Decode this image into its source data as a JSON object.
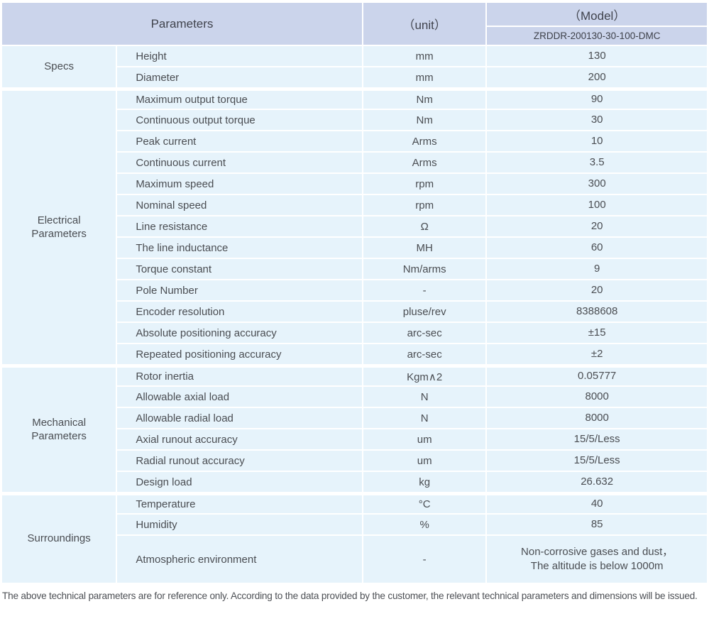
{
  "header": {
    "parameters_label": "Parameters",
    "unit_label": "（unit）",
    "model_label": "（Model）",
    "model_value": "ZRDDR-200130-30-100-DMC"
  },
  "colors": {
    "header_bg": "#cbd4eb",
    "row_bg": "#e6f3fb",
    "text": "#4a4d52"
  },
  "table": {
    "sections": [
      {
        "name": "Specs",
        "rows": [
          {
            "parameter": "Height",
            "unit": "mm",
            "value": "130"
          },
          {
            "parameter": "Diameter",
            "unit": "mm",
            "value": "200"
          }
        ]
      },
      {
        "name": "Electrical Parameters",
        "rows": [
          {
            "parameter": "Maximum output torque",
            "unit": "Nm",
            "value": "90"
          },
          {
            "parameter": "Continuous output torque",
            "unit": "Nm",
            "value": "30"
          },
          {
            "parameter": "Peak current",
            "unit": "Arms",
            "value": "10"
          },
          {
            "parameter": "Continuous current",
            "unit": "Arms",
            "value": "3.5"
          },
          {
            "parameter": "Maximum speed",
            "unit": "rpm",
            "value": "300"
          },
          {
            "parameter": "Nominal speed",
            "unit": "rpm",
            "value": "100"
          },
          {
            "parameter": "Line resistance",
            "unit": "Ω",
            "value": "20"
          },
          {
            "parameter": "The line inductance",
            "unit": "MH",
            "value": "60"
          },
          {
            "parameter": "Torque constant",
            "unit": "Nm/arms",
            "value": "9"
          },
          {
            "parameter": "Pole Number",
            "unit": "-",
            "value": "20"
          },
          {
            "parameter": "Encoder resolution",
            "unit": "pluse/rev",
            "value": "8388608"
          },
          {
            "parameter": "Absolute positioning accuracy",
            "unit": "arc-sec",
            "value": "±15"
          },
          {
            "parameter": "Repeated positioning accuracy",
            "unit": "arc-sec",
            "value": "±2"
          }
        ]
      },
      {
        "name": "Mechanical Parameters",
        "rows": [
          {
            "parameter": "Rotor inertia",
            "unit": "Kgm∧2",
            "value": "0.05777"
          },
          {
            "parameter": "Allowable axial load",
            "unit": "N",
            "value": "8000"
          },
          {
            "parameter": "Allowable radial load",
            "unit": "N",
            "value": "8000"
          },
          {
            "parameter": "Axial runout accuracy",
            "unit": "um",
            "value": "15/5/Less"
          },
          {
            "parameter": "Radial runout accuracy",
            "unit": "um",
            "value": "15/5/Less"
          },
          {
            "parameter": "Design load",
            "unit": "kg",
            "value": "26.632"
          }
        ]
      },
      {
        "name": "Surroundings",
        "rows": [
          {
            "parameter": "Temperature",
            "unit": "°C",
            "value": "40"
          },
          {
            "parameter": "Humidity",
            "unit": "%",
            "value": "85"
          },
          {
            "parameter": "Atmospheric environment",
            "unit": "-",
            "value": "Non-corrosive gases and dust，\nThe altitude is below 1000m",
            "tall": true
          }
        ]
      }
    ]
  },
  "footnote": "The above technical parameters are for reference only. According to the data provided by the customer, the relevant technical parameters and dimensions will be issued."
}
